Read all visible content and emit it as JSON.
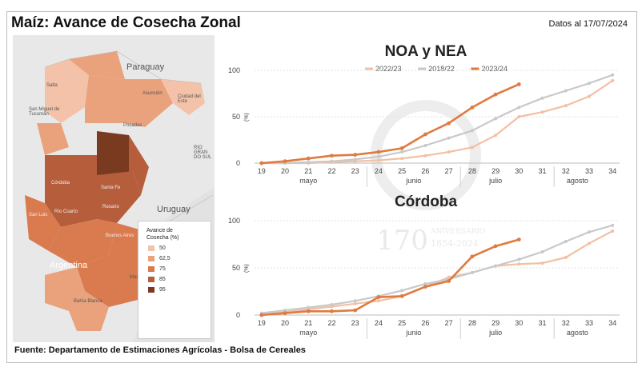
{
  "header": {
    "title": "Maíz: Avance de Cosecha Zonal",
    "date": "Datos al 17/07/2024"
  },
  "footer": {
    "source": "Fuente: Departamento de Estimaciones Agrícolas - Bolsa de Cereales"
  },
  "map": {
    "places": {
      "paraguay": "Paraguay",
      "uruguay": "Uruguay",
      "argentina": "Argentina",
      "salta": "Salta",
      "tucuman": "San Miguel de Tucumán",
      "asuncion": "Asunción",
      "ciudad_del_este": "Ciudad del Este",
      "posadas": "Posadas",
      "rio_grande": "RIO GRAN DO SUL",
      "cordoba": "Córdoba",
      "santa_fe": "Santa Fe",
      "rosario": "Rosario",
      "rio_cuarto": "Río Cuarto",
      "san_luis": "San Luis",
      "buenos_aires": "Buenos Aires",
      "mar_del_plata": "Mar del Plata",
      "bahia_blanca": "Bahía Blanca"
    },
    "legend": {
      "title_line1": "Avance de",
      "title_line2": "Cosecha (%)",
      "items": [
        {
          "label": "50",
          "color": "#f3c2a8"
        },
        {
          "label": "62,5",
          "color": "#e9a27c"
        },
        {
          "label": "75",
          "color": "#d97b4e"
        },
        {
          "label": "85",
          "color": "#b65e3c"
        },
        {
          "label": "95",
          "color": "#7a3a20"
        }
      ]
    }
  },
  "watermark": {
    "years": "170",
    "line1": "ANIVERSARIO",
    "line2": "1854-2024"
  },
  "chart_data": [
    {
      "type": "line",
      "title": "NOA y NEA",
      "ylabel": "(%)",
      "ylim": [
        0,
        100
      ],
      "yticks": [
        0,
        50,
        100
      ],
      "x": [
        19,
        20,
        21,
        22,
        23,
        24,
        25,
        26,
        27,
        28,
        29,
        30,
        31,
        32,
        33,
        34
      ],
      "months": [
        "mayo",
        "junio",
        "julio",
        "agosto"
      ],
      "series": [
        {
          "name": "2022/23",
          "color": "#f2c0a2",
          "x": [
            19,
            20,
            21,
            22,
            23,
            24,
            25,
            26,
            27,
            28,
            29,
            30,
            31,
            32,
            33,
            34
          ],
          "values": [
            0,
            0,
            0,
            1,
            2,
            3,
            5,
            8,
            12,
            17,
            30,
            50,
            55,
            62,
            72,
            89
          ]
        },
        {
          "name": "2018/22",
          "color": "#c9c9c9",
          "x": [
            19,
            20,
            21,
            22,
            23,
            24,
            25,
            26,
            27,
            28,
            29,
            30,
            31,
            32,
            33,
            34
          ],
          "values": [
            0,
            0,
            1,
            2,
            4,
            7,
            12,
            19,
            27,
            35,
            48,
            60,
            70,
            78,
            86,
            95
          ]
        },
        {
          "name": "2023/24",
          "color": "#e07a3f",
          "x": [
            19,
            20,
            21,
            22,
            23,
            24,
            25,
            26,
            27,
            28,
            29,
            30
          ],
          "values": [
            0,
            2,
            5,
            8,
            9,
            12,
            16,
            31,
            43,
            60,
            74,
            85
          ]
        }
      ]
    },
    {
      "type": "line",
      "title": "Córdoba",
      "ylabel": "(%)",
      "ylim": [
        0,
        100
      ],
      "yticks": [
        0,
        50,
        100
      ],
      "x": [
        19,
        20,
        21,
        22,
        23,
        24,
        25,
        26,
        27,
        28,
        29,
        30,
        31,
        32,
        33,
        34
      ],
      "months": [
        "mayo",
        "junio",
        "julio",
        "agosto"
      ],
      "series": [
        {
          "name": "2022/23",
          "color": "#f2c0a2",
          "x": [
            19,
            20,
            21,
            22,
            23,
            24,
            25,
            26,
            27,
            28,
            29,
            30,
            31,
            32,
            33,
            34
          ],
          "values": [
            1,
            3,
            6,
            9,
            12,
            15,
            20,
            30,
            40,
            45,
            52,
            54,
            55,
            61,
            76,
            89
          ]
        },
        {
          "name": "2018/22",
          "color": "#c9c9c9",
          "x": [
            19,
            20,
            21,
            22,
            23,
            24,
            25,
            26,
            27,
            28,
            29,
            30,
            31,
            32,
            33,
            34
          ],
          "values": [
            2,
            5,
            8,
            11,
            15,
            20,
            26,
            33,
            38,
            45,
            52,
            59,
            67,
            78,
            88,
            95
          ]
        },
        {
          "name": "2023/24",
          "color": "#e07a3f",
          "x": [
            19,
            20,
            21,
            22,
            23,
            24,
            25,
            26,
            27,
            28,
            29,
            30
          ],
          "values": [
            0,
            2,
            4,
            4,
            5,
            19,
            20,
            30,
            36,
            62,
            73,
            80
          ]
        }
      ]
    }
  ]
}
